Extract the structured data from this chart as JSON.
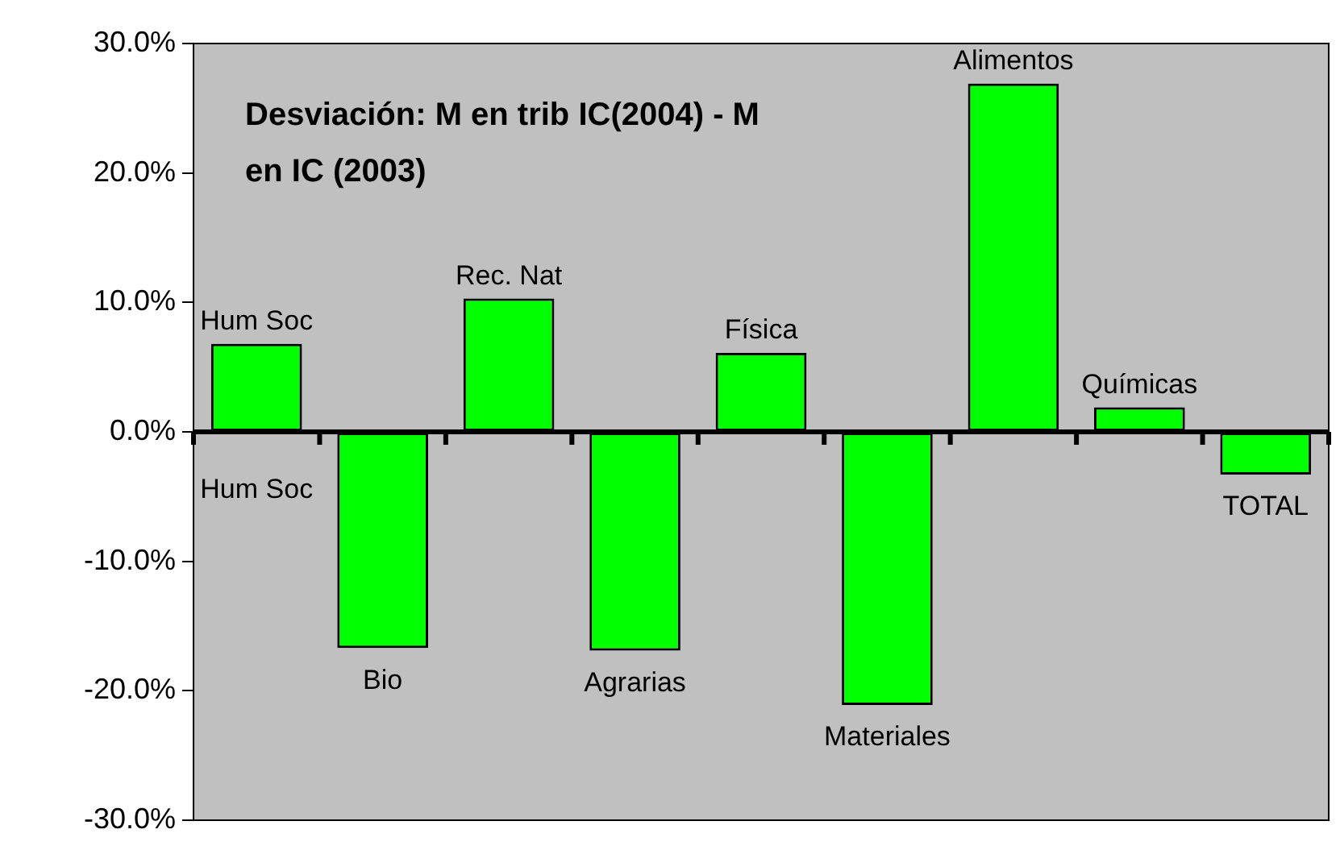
{
  "chart_data": {
    "type": "bar",
    "title": "Desviación: M en trib IC(2004) - M en IC (2003)",
    "categories": [
      "Hum Soc",
      "Bio",
      "Rec. Nat",
      "Agrarias",
      "Física",
      "Materiales",
      "Alimentos",
      "Químicas",
      "TOTAL"
    ],
    "values": [
      6.8,
      -16.7,
      10.3,
      -16.9,
      6.1,
      -21.1,
      26.9,
      1.9,
      -3.3
    ],
    "color": "#00ff00",
    "ylim": [
      -30,
      30
    ],
    "yticks": [
      {
        "value": -30,
        "label": "-30.0%"
      },
      {
        "value": -20,
        "label": "-20.0%"
      },
      {
        "value": -10,
        "label": "-10.0%"
      },
      {
        "value": 0,
        "label": "0.0%"
      },
      {
        "value": 10,
        "label": "10.0%"
      },
      {
        "value": 20,
        "label": "20.0%"
      },
      {
        "value": 30,
        "label": "30.0%"
      }
    ],
    "annotations": [
      "Hum Soc"
    ],
    "legend": false
  }
}
